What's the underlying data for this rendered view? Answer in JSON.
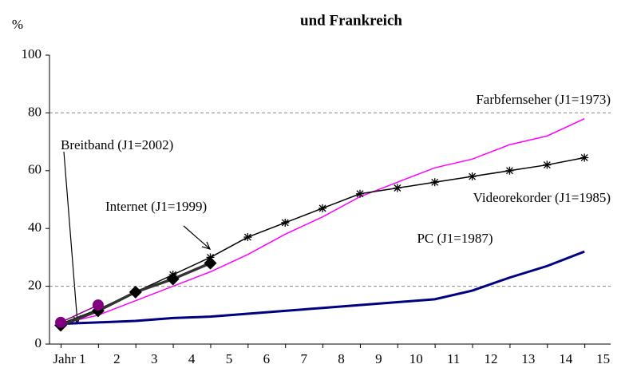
{
  "chart_data": {
    "type": "line",
    "title": "und Frankreich",
    "ylabel": "%",
    "x": [
      0.5,
      1.5,
      2.5,
      3.5,
      4.5,
      5.5,
      6.5,
      7.5,
      8.5,
      9.5,
      10.5,
      11.5,
      12.5,
      13.5,
      14.5
    ],
    "xlim": [
      0.2,
      15.2
    ],
    "xticks": [
      {
        "value": 1,
        "label": "Jahr 1"
      },
      2,
      3,
      4,
      5,
      6,
      7,
      8,
      9,
      10,
      11,
      12,
      13,
      14,
      15
    ],
    "ylim": [
      0,
      100
    ],
    "yticks": [
      0,
      20,
      40,
      60,
      80,
      100
    ],
    "reference_lines": [
      20,
      80
    ],
    "series": [
      {
        "name": "Farbfernseher (J1=1973)",
        "color": "#ff00ff",
        "marker": null,
        "values": [
          7,
          10,
          15,
          20,
          25,
          31,
          38,
          44,
          51,
          56,
          61,
          64,
          69,
          72,
          78
        ]
      },
      {
        "name": "Videorekorder (J1=1985)",
        "color": "#000000",
        "marker": "asterisk",
        "values": [
          7,
          12,
          18,
          24,
          30,
          37,
          42,
          47,
          52,
          54,
          56,
          58,
          60,
          62,
          64.5
        ]
      },
      {
        "name": "PC (J1=1987)",
        "color": "#000080",
        "marker": null,
        "values": [
          7,
          7.5,
          8,
          9,
          9.5,
          10.5,
          11.5,
          12.5,
          13.5,
          14.5,
          15.5,
          18.5,
          23,
          27,
          32
        ]
      },
      {
        "name": "Internet  (J1=1999)",
        "color": "#333333",
        "marker": "diamond",
        "values": [
          6.5,
          11.5,
          18,
          22.5,
          28,
          null,
          null,
          null,
          null,
          null,
          null,
          null,
          null,
          null,
          null
        ]
      },
      {
        "name": "Breitband (J1=2002)",
        "color": "#800080",
        "marker": "circle",
        "values": [
          7.5,
          13.5,
          null,
          null,
          null,
          null,
          null,
          null,
          null,
          null,
          null,
          null,
          null,
          null,
          null
        ]
      }
    ]
  }
}
